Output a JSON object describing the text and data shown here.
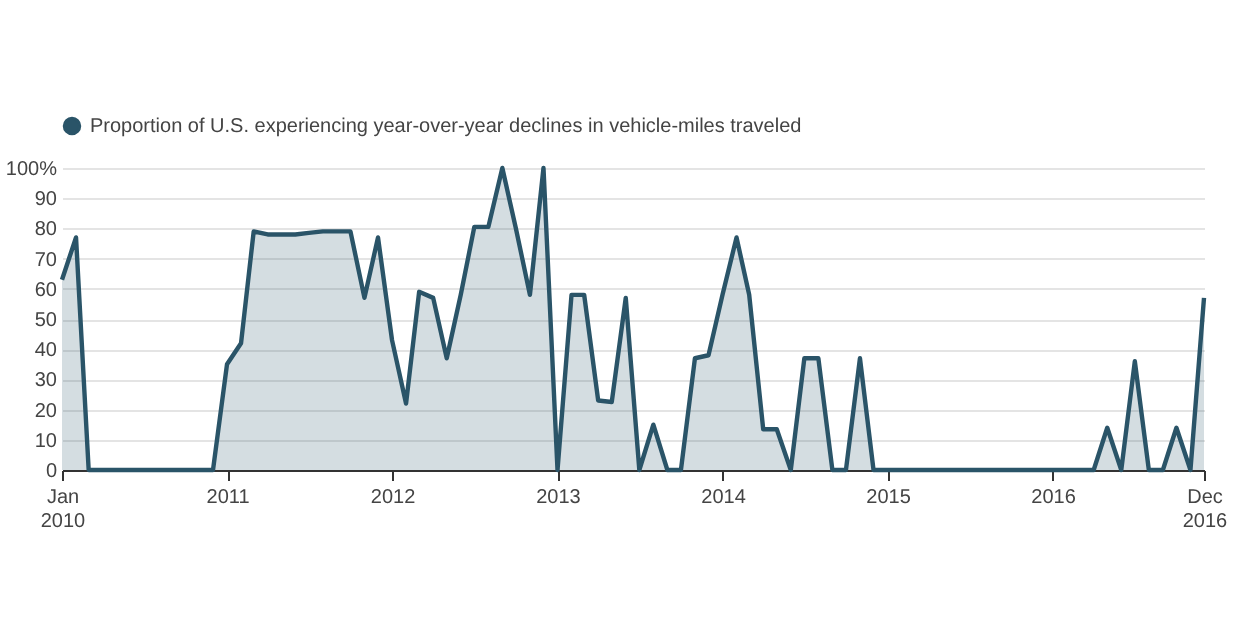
{
  "chart_data": {
    "type": "area",
    "x": [
      "2010-01",
      "2010-02",
      "2010-03",
      "2010-04",
      "2010-05",
      "2010-06",
      "2010-07",
      "2010-08",
      "2010-09",
      "2010-10",
      "2010-11",
      "2010-12",
      "2011-01",
      "2011-02",
      "2011-03",
      "2011-04",
      "2011-05",
      "2011-06",
      "2011-07",
      "2011-08",
      "2011-09",
      "2011-10",
      "2011-11",
      "2011-12",
      "2012-01",
      "2012-02",
      "2012-03",
      "2012-04",
      "2012-05",
      "2012-06",
      "2012-07",
      "2012-08",
      "2012-09",
      "2012-10",
      "2012-11",
      "2012-12",
      "2013-01",
      "2013-02",
      "2013-03",
      "2013-04",
      "2013-05",
      "2013-06",
      "2013-07",
      "2013-08",
      "2013-09",
      "2013-10",
      "2013-11",
      "2013-12",
      "2014-01",
      "2014-02",
      "2014-03",
      "2014-04",
      "2014-05",
      "2014-06",
      "2014-07",
      "2014-08",
      "2014-09",
      "2014-10",
      "2014-11",
      "2014-12",
      "2015-01",
      "2015-02",
      "2015-03",
      "2015-04",
      "2015-05",
      "2015-06",
      "2015-07",
      "2015-08",
      "2015-09",
      "2015-10",
      "2015-11",
      "2015-12",
      "2016-01",
      "2016-02",
      "2016-03",
      "2016-04",
      "2016-05",
      "2016-06",
      "2016-07",
      "2016-08",
      "2016-09",
      "2016-10",
      "2016-11",
      "2016-12"
    ],
    "series": [
      {
        "name": "Proportion of U.S. experiencing year-over-year declines in vehicle-miles traveled",
        "color": "#2a5468",
        "values": [
          63,
          77,
          0,
          0,
          0,
          0,
          0,
          0,
          0,
          0,
          0,
          0,
          35,
          42,
          79,
          78,
          78,
          78,
          78.5,
          79,
          79,
          79,
          57,
          77,
          43,
          22,
          59,
          57,
          37,
          58,
          80.5,
          80.5,
          100,
          80,
          58,
          100,
          0,
          58,
          58,
          23,
          22.5,
          57,
          0,
          15,
          0,
          0,
          37,
          38,
          58,
          77,
          58,
          13.5,
          13.5,
          0,
          37,
          37,
          0,
          0,
          37,
          0,
          0,
          0,
          0,
          0,
          0,
          0,
          0,
          0,
          0,
          0,
          0,
          0,
          0,
          0,
          0,
          0,
          14,
          0,
          36,
          0,
          0,
          14,
          0,
          57
        ]
      }
    ],
    "xlim": [
      "2010-01",
      "2016-12"
    ],
    "xticks": [
      {
        "value": "2010-01",
        "label": "Jan 2010"
      },
      {
        "value": "2011-01",
        "label": "2011"
      },
      {
        "value": "2012-01",
        "label": "2012"
      },
      {
        "value": "2013-01",
        "label": "2013"
      },
      {
        "value": "2014-01",
        "label": "2014"
      },
      {
        "value": "2015-01",
        "label": "2015"
      },
      {
        "value": "2016-01",
        "label": "2016"
      },
      {
        "value": "2016-12",
        "label": "Dec 2016"
      }
    ],
    "ylim": [
      0,
      100
    ],
    "yticks": [
      0,
      10,
      20,
      30,
      40,
      50,
      60,
      70,
      80,
      90,
      {
        "value": 100,
        "label": "100%"
      }
    ],
    "grid": "y",
    "legend": "top left"
  }
}
